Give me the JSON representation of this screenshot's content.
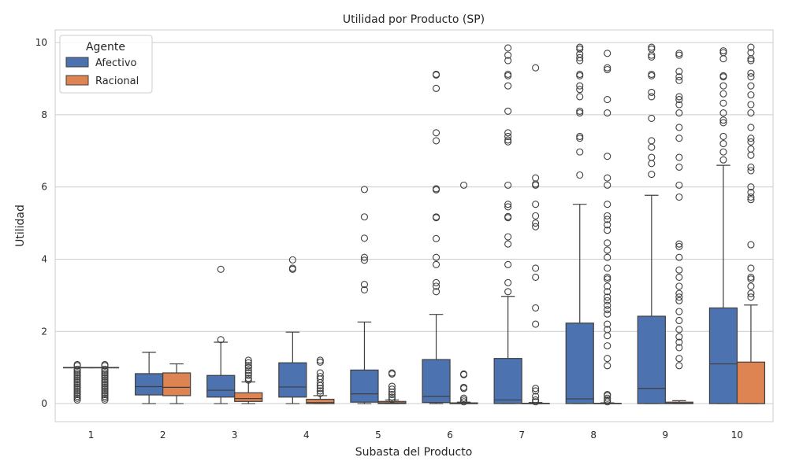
{
  "chart_data": {
    "type": "box",
    "title": "Utilidad por Producto (SP)",
    "xlabel": "Subasta del Producto",
    "ylabel": "Utilidad",
    "categories": [
      "1",
      "2",
      "3",
      "4",
      "5",
      "6",
      "7",
      "8",
      "9",
      "10"
    ],
    "ylim": [
      -0.5,
      10.35
    ],
    "yticks": [
      0,
      2,
      4,
      6,
      8,
      10
    ],
    "grid": true,
    "legend": {
      "title": "Agente",
      "placement": "top-left",
      "entries": [
        "Afectivo",
        "Racional"
      ]
    },
    "series": [
      {
        "name": "Afectivo",
        "color": "#4c72b0",
        "boxes": [
          {
            "whislo": 1.0,
            "q1": 1.0,
            "med": 1.0,
            "q3": 1.0,
            "whishi": 1.0,
            "fliers": [
              0.1,
              0.15,
              0.2,
              0.25,
              0.3,
              0.35,
              0.4,
              0.45,
              0.5,
              0.55,
              0.6,
              0.65,
              0.7,
              0.75,
              0.8,
              0.85,
              0.9,
              0.95,
              1.05,
              1.08
            ]
          },
          {
            "whislo": 0.0,
            "q1": 0.24,
            "med": 0.47,
            "q3": 0.83,
            "whishi": 1.42,
            "fliers": []
          },
          {
            "whislo": 0.0,
            "q1": 0.18,
            "med": 0.37,
            "q3": 0.78,
            "whishi": 1.7,
            "fliers": [
              1.77,
              3.72
            ]
          },
          {
            "whislo": 0.0,
            "q1": 0.18,
            "med": 0.46,
            "q3": 1.13,
            "whishi": 1.98,
            "fliers": [
              3.72,
              3.75,
              3.98
            ]
          },
          {
            "whislo": 0.0,
            "q1": 0.04,
            "med": 0.27,
            "q3": 0.93,
            "whishi": 2.26,
            "fliers": [
              3.15,
              3.3,
              3.97,
              4.05,
              4.58,
              5.17,
              5.93
            ]
          },
          {
            "whislo": 0.0,
            "q1": 0.03,
            "med": 0.2,
            "q3": 1.22,
            "whishi": 2.47,
            "fliers": [
              3.1,
              3.25,
              3.35,
              3.85,
              4.05,
              4.57,
              5.15,
              5.17,
              5.92,
              5.95,
              7.28,
              7.5,
              8.73,
              9.1,
              9.12
            ]
          },
          {
            "whislo": 0.0,
            "q1": 0.0,
            "med": 0.1,
            "q3": 1.25,
            "whishi": 2.97,
            "fliers": [
              3.1,
              3.35,
              3.85,
              4.42,
              4.62,
              5.15,
              5.18,
              5.45,
              5.52,
              6.05,
              7.25,
              7.3,
              7.4,
              7.5,
              8.1,
              8.8,
              9.08,
              9.12,
              9.5,
              9.65,
              9.85
            ]
          },
          {
            "whislo": 0.0,
            "q1": 0.0,
            "med": 0.13,
            "q3": 2.23,
            "whishi": 5.52,
            "fliers": [
              6.33,
              6.97,
              7.35,
              7.4,
              8.05,
              8.1,
              8.5,
              8.7,
              8.8,
              9.08,
              9.12,
              9.5,
              9.58,
              9.68,
              9.82,
              9.87
            ]
          },
          {
            "whislo": 0.0,
            "q1": 0.0,
            "med": 0.42,
            "q3": 2.42,
            "whishi": 5.77,
            "fliers": [
              6.35,
              6.65,
              6.82,
              7.1,
              7.28,
              7.9,
              8.5,
              8.62,
              9.08,
              9.12,
              9.6,
              9.65,
              9.82,
              9.87
            ]
          },
          {
            "whislo": 0.0,
            "q1": 0.0,
            "med": 1.1,
            "q3": 2.65,
            "whishi": 6.6,
            "fliers": [
              6.75,
              6.97,
              7.2,
              7.4,
              7.78,
              7.85,
              8.05,
              8.32,
              8.58,
              8.8,
              9.05,
              9.08,
              9.55,
              9.72,
              9.77
            ]
          }
        ]
      },
      {
        "name": "Racional",
        "color": "#dd8452",
        "boxes": [
          {
            "whislo": 1.0,
            "q1": 1.0,
            "med": 1.0,
            "q3": 1.0,
            "whishi": 1.0,
            "fliers": [
              0.1,
              0.15,
              0.2,
              0.25,
              0.3,
              0.35,
              0.4,
              0.45,
              0.5,
              0.55,
              0.6,
              0.65,
              0.7,
              0.75,
              0.8,
              0.85,
              0.9,
              0.95,
              1.05,
              1.08
            ]
          },
          {
            "whislo": 0.0,
            "q1": 0.22,
            "med": 0.45,
            "q3": 0.85,
            "whishi": 1.1,
            "fliers": []
          },
          {
            "whislo": 0.0,
            "q1": 0.06,
            "med": 0.14,
            "q3": 0.3,
            "whishi": 0.6,
            "fliers": [
              0.65,
              0.7,
              0.78,
              0.85,
              0.92,
              1.0,
              1.05,
              1.13,
              1.2
            ]
          },
          {
            "whislo": 0.0,
            "q1": 0.0,
            "med": 0.03,
            "q3": 0.12,
            "whishi": 0.22,
            "fliers": [
              0.28,
              0.35,
              0.42,
              0.5,
              0.58,
              0.68,
              0.75,
              0.85,
              1.15,
              1.2
            ]
          },
          {
            "whislo": 0.0,
            "q1": 0.0,
            "med": 0.02,
            "q3": 0.06,
            "whishi": 0.1,
            "fliers": [
              0.12,
              0.18,
              0.25,
              0.32,
              0.4,
              0.48,
              0.82,
              0.85
            ]
          },
          {
            "whislo": 0.0,
            "q1": 0.0,
            "med": 0.0,
            "q3": 0.02,
            "whishi": 0.04,
            "fliers": [
              0.05,
              0.1,
              0.15,
              0.42,
              0.45,
              0.8,
              0.82,
              6.05
            ]
          },
          {
            "whislo": 0.0,
            "q1": 0.0,
            "med": 0.0,
            "q3": 0.01,
            "whishi": 0.03,
            "fliers": [
              0.05,
              0.1,
              0.2,
              0.35,
              0.42,
              2.2,
              2.65,
              3.5,
              3.75,
              4.9,
              5.0,
              5.2,
              5.52,
              6.05,
              6.08,
              6.25,
              9.3
            ]
          },
          {
            "whislo": 0.0,
            "q1": 0.0,
            "med": 0.0,
            "q3": 0.01,
            "whishi": 0.02,
            "fliers": [
              0.05,
              0.1,
              0.15,
              0.22,
              0.25,
              1.05,
              1.25,
              1.6,
              1.88,
              2.05,
              2.2,
              2.48,
              2.6,
              2.72,
              2.85,
              2.95,
              3.1,
              3.25,
              3.45,
              3.5,
              3.75,
              4.05,
              4.25,
              4.45,
              4.8,
              4.95,
              5.1,
              5.2,
              5.52,
              6.05,
              6.25,
              6.85,
              8.05,
              8.42,
              9.25,
              9.3,
              9.7
            ]
          },
          {
            "whislo": 0.0,
            "q1": 0.0,
            "med": 0.01,
            "q3": 0.04,
            "whishi": 0.08,
            "fliers": [
              1.05,
              1.25,
              1.55,
              1.7,
              1.85,
              2.05,
              2.3,
              2.55,
              2.85,
              2.95,
              3.05,
              3.25,
              3.5,
              3.7,
              4.05,
              4.35,
              4.42,
              5.72,
              6.05,
              6.55,
              6.82,
              7.35,
              7.65,
              8.05,
              8.28,
              8.42,
              8.5,
              8.95,
              9.05,
              9.2,
              9.65,
              9.7
            ]
          },
          {
            "whislo": 0.0,
            "q1": 0.0,
            "med": 0.0,
            "q3": 1.15,
            "whishi": 2.73,
            "fliers": [
              2.95,
              3.05,
              3.25,
              3.45,
              3.5,
              3.75,
              4.4,
              5.65,
              5.72,
              5.85,
              6.0,
              6.45,
              6.55,
              6.88,
              7.05,
              7.25,
              7.35,
              7.65,
              8.05,
              8.28,
              8.55,
              8.8,
              9.05,
              9.15,
              9.5,
              9.55,
              9.72,
              9.87
            ]
          }
        ]
      }
    ]
  }
}
